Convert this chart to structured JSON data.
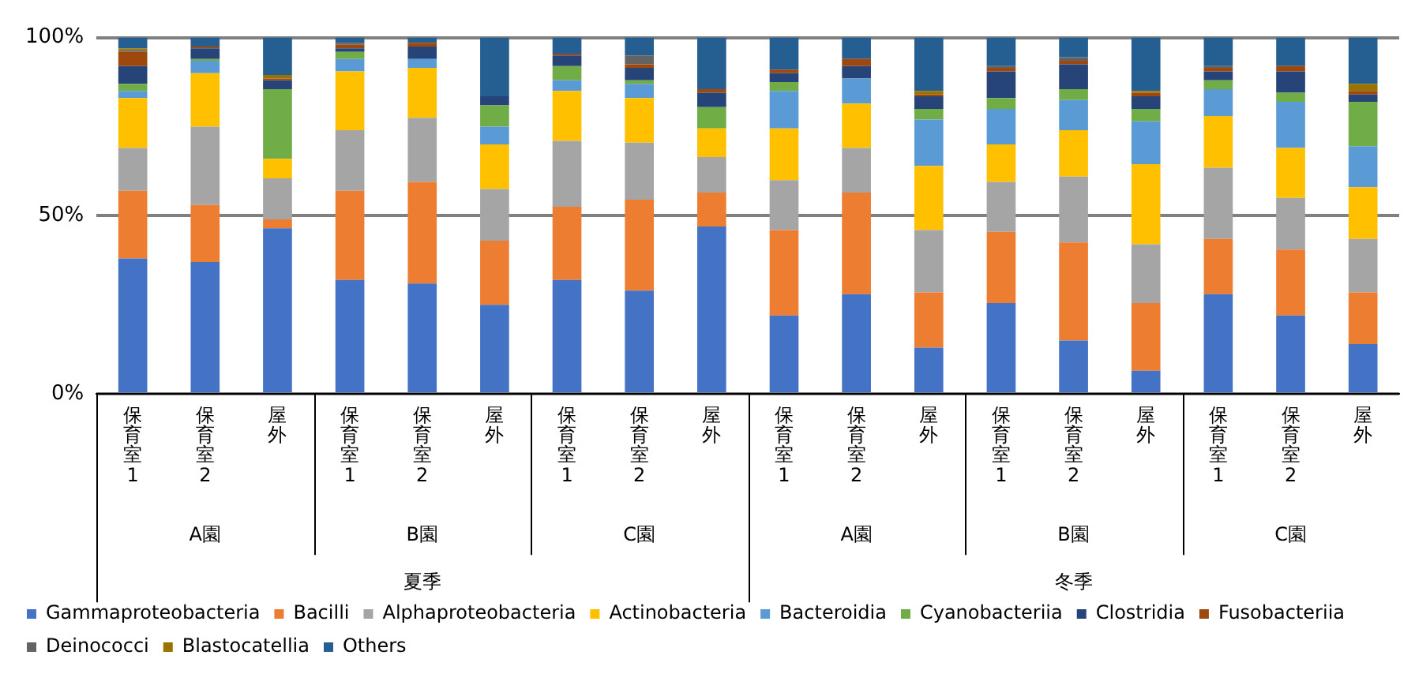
{
  "chart_data": {
    "type": "bar",
    "stacked": true,
    "categories": [
      "保育室1",
      "保育室2",
      "屋外",
      "保育室1",
      "保育室2",
      "屋外",
      "保育室1",
      "保育室2",
      "屋外",
      "保育室1",
      "保育室2",
      "屋外",
      "保育室1",
      "保育室2",
      "屋外",
      "保育室1",
      "保育室2",
      "屋外"
    ],
    "annotations": [
      "A園",
      "B園",
      "C園",
      "A園",
      "B園",
      "C園",
      "夏季",
      "冬季"
    ],
    "ylim": [
      0,
      100
    ],
    "yticks": [
      {
        "value": 0,
        "label": "0%"
      },
      {
        "value": 50,
        "label": "50%"
      },
      {
        "value": 100,
        "label": "100%"
      }
    ],
    "grid": "y",
    "legend": "bottom",
    "series": [
      {
        "name": "Gammaproteobacteria",
        "color": "#4472c4",
        "values": [
          38,
          37,
          46.5,
          32,
          31,
          25,
          32,
          29,
          47,
          22,
          28,
          13,
          25.5,
          15,
          6.5,
          28,
          22,
          14
        ]
      },
      {
        "name": "Bacilli",
        "color": "#ed7d31",
        "values": [
          19,
          16,
          2.5,
          25,
          28.5,
          18,
          20.5,
          25.5,
          9.5,
          24,
          28.5,
          15.5,
          20,
          27.5,
          19,
          15.5,
          18.5,
          14.5
        ]
      },
      {
        "name": "Alphaproteobacteria",
        "color": "#a5a5a5",
        "values": [
          12,
          22,
          11.5,
          17,
          18,
          14.5,
          18.5,
          16,
          10,
          14,
          12.5,
          17.5,
          14,
          18.5,
          16.5,
          20,
          14.5,
          15
        ]
      },
      {
        "name": "Actinobacteria",
        "color": "#ffc000",
        "values": [
          14,
          15,
          5.5,
          16.5,
          14,
          12.5,
          14,
          12.5,
          8,
          14.5,
          12.5,
          18,
          10.5,
          13,
          22.5,
          14.5,
          14,
          14.5
        ]
      },
      {
        "name": "Bacteroidia",
        "color": "#5b9bd5",
        "values": [
          2,
          3.5,
          0,
          3.5,
          2.5,
          5,
          3,
          4,
          0,
          10.5,
          7,
          13,
          10,
          8.5,
          12,
          7.5,
          13,
          11.5
        ]
      },
      {
        "name": "Cyanobacteriia",
        "color": "#70ad47",
        "values": [
          2,
          0.5,
          19.5,
          2,
          0,
          6,
          4,
          1,
          6,
          2.5,
          0,
          3,
          3,
          3,
          3.5,
          2.5,
          2.5,
          12.5
        ]
      },
      {
        "name": "Clostridia",
        "color": "#264478",
        "values": [
          5,
          3,
          2.5,
          1,
          3.5,
          2.5,
          3,
          3.5,
          4,
          2.5,
          3.5,
          3.5,
          7.5,
          7,
          3.5,
          2.5,
          6,
          2
        ]
      },
      {
        "name": "Fusobacteriia",
        "color": "#9e480e",
        "values": [
          4,
          0.5,
          0.5,
          1,
          1,
          0,
          0.5,
          1,
          1,
          1,
          2,
          0.5,
          1,
          1,
          1,
          1,
          1.5,
          1
        ]
      },
      {
        "name": "Deinococci",
        "color": "#636363",
        "values": [
          0.5,
          0,
          0,
          0.5,
          0,
          0,
          0,
          2.5,
          0,
          0,
          0,
          0,
          0.5,
          1,
          0,
          0.5,
          0,
          0
        ]
      },
      {
        "name": "Blastocatellia",
        "color": "#997300",
        "values": [
          0.5,
          0,
          1,
          0,
          0,
          0,
          0,
          0,
          0,
          0,
          0,
          1,
          0,
          0,
          0.5,
          0,
          0,
          2
        ]
      },
      {
        "name": "Others",
        "color": "#255e91",
        "values": [
          3,
          2.5,
          10.5,
          1.5,
          1.5,
          16.5,
          4.5,
          5,
          14.5,
          9,
          6,
          15,
          8,
          5.5,
          15,
          8,
          8,
          13
        ]
      }
    ]
  }
}
